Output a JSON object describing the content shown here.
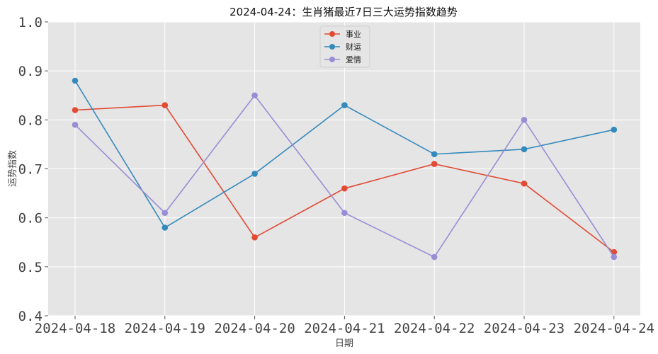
{
  "chart_data": {
    "type": "line",
    "title": "2024-04-24：生肖猪最近7日三大运势指数趋势",
    "xlabel": "日期",
    "ylabel": "运势指数",
    "categories": [
      "2024-04-18",
      "2024-04-19",
      "2024-04-20",
      "2024-04-21",
      "2024-04-22",
      "2024-04-23",
      "2024-04-24"
    ],
    "ylim": [
      0.4,
      1.0
    ],
    "yticks": [
      "0.4",
      "0.5",
      "0.6",
      "0.7",
      "0.8",
      "0.9",
      "1.0"
    ],
    "grid": true,
    "legend_position": "top-center",
    "series": [
      {
        "name": "事业",
        "color": "#E24A33",
        "values": [
          0.82,
          0.83,
          0.56,
          0.66,
          0.71,
          0.67,
          0.53
        ]
      },
      {
        "name": "财运",
        "color": "#348ABD",
        "values": [
          0.88,
          0.58,
          0.69,
          0.83,
          0.73,
          0.74,
          0.78
        ]
      },
      {
        "name": "爱情",
        "color": "#988ED5",
        "values": [
          0.79,
          0.61,
          0.85,
          0.61,
          0.52,
          0.8,
          0.52
        ]
      }
    ]
  }
}
